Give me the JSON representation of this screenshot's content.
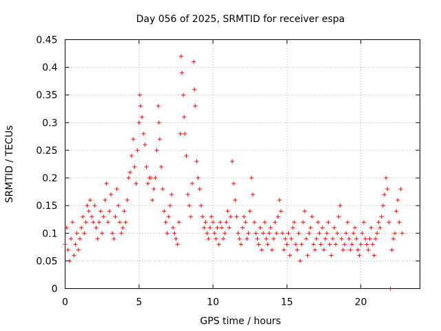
{
  "chart_data": {
    "type": "scatter",
    "title": "Day 056 of 2025, SRMTID for receiver espa",
    "xlabel": "GPS time / hours",
    "ylabel": "SRMTID / TECUs",
    "xlim": [
      0,
      24
    ],
    "ylim": [
      0,
      0.45
    ],
    "xticks": [
      0,
      5,
      10,
      15,
      20
    ],
    "xtick_labels": [
      "0",
      "5",
      "10",
      "15",
      "20"
    ],
    "yticks": [
      0,
      0.05,
      0.1,
      0.15,
      0.2,
      0.25,
      0.3,
      0.35,
      0.4,
      0.45
    ],
    "ytick_labels": [
      "0",
      "0.05",
      "0.1",
      "0.15",
      "0.2",
      "0.25",
      "0.3",
      "0.35",
      "0.4",
      "0.45"
    ],
    "grid": true,
    "marker": "+",
    "series": [
      {
        "name": "SRMTID",
        "color": "#ff0000",
        "x": [
          0.0,
          0.1,
          0.2,
          0.3,
          0.4,
          0.5,
          0.6,
          0.7,
          0.8,
          0.9,
          1.0,
          1.1,
          1.2,
          1.3,
          1.4,
          1.5,
          1.6,
          1.7,
          1.8,
          1.9,
          2.0,
          2.1,
          2.2,
          2.3,
          2.4,
          2.5,
          2.6,
          2.7,
          2.8,
          2.9,
          3.0,
          3.1,
          3.2,
          3.3,
          3.4,
          3.5,
          3.6,
          3.7,
          3.8,
          3.9,
          4.0,
          4.1,
          4.2,
          4.3,
          4.4,
          4.5,
          4.6,
          4.7,
          4.8,
          4.9,
          5.0,
          5.05,
          5.1,
          5.2,
          5.3,
          5.4,
          5.5,
          5.6,
          5.7,
          5.8,
          5.9,
          6.0,
          6.1,
          6.2,
          6.3,
          6.35,
          6.4,
          6.5,
          6.6,
          6.7,
          6.8,
          6.9,
          7.0,
          7.1,
          7.2,
          7.3,
          7.4,
          7.5,
          7.6,
          7.7,
          7.8,
          7.85,
          7.9,
          8.0,
          8.05,
          8.1,
          8.2,
          8.3,
          8.4,
          8.5,
          8.6,
          8.7,
          8.75,
          8.8,
          8.9,
          9.0,
          9.1,
          9.2,
          9.3,
          9.4,
          9.5,
          9.6,
          9.7,
          9.8,
          9.9,
          10.0,
          10.1,
          10.2,
          10.3,
          10.4,
          10.5,
          10.6,
          10.7,
          10.8,
          10.9,
          11.0,
          11.1,
          11.2,
          11.3,
          11.4,
          11.5,
          11.6,
          11.7,
          11.8,
          11.9,
          12.0,
          12.1,
          12.2,
          12.3,
          12.4,
          12.5,
          12.6,
          12.7,
          12.8,
          12.9,
          13.0,
          13.1,
          13.2,
          13.3,
          13.4,
          13.5,
          13.6,
          13.7,
          13.8,
          13.9,
          14.0,
          14.1,
          14.2,
          14.3,
          14.4,
          14.5,
          14.6,
          14.7,
          14.8,
          14.9,
          15.0,
          15.1,
          15.2,
          15.3,
          15.4,
          15.5,
          15.6,
          15.7,
          15.8,
          15.9,
          16.0,
          16.1,
          16.2,
          16.3,
          16.4,
          16.5,
          16.6,
          16.7,
          16.8,
          16.9,
          17.0,
          17.1,
          17.2,
          17.3,
          17.4,
          17.5,
          17.6,
          17.7,
          17.8,
          17.9,
          18.0,
          18.1,
          18.2,
          18.3,
          18.4,
          18.5,
          18.6,
          18.7,
          18.8,
          18.9,
          19.0,
          19.1,
          19.2,
          19.3,
          19.4,
          19.5,
          19.6,
          19.7,
          19.8,
          19.9,
          20.0,
          20.1,
          20.2,
          20.3,
          20.4,
          20.5,
          20.6,
          20.7,
          20.8,
          20.9,
          21.0,
          21.1,
          21.2,
          21.3,
          21.4,
          21.5,
          21.6,
          21.7,
          21.8,
          21.9,
          22.0,
          22.1,
          22.2,
          22.3,
          22.4,
          22.5,
          22.6,
          22.7,
          22.8
        ],
        "y": [
          0.08,
          0.11,
          0.07,
          0.05,
          0.09,
          0.12,
          0.06,
          0.08,
          0.1,
          0.07,
          0.09,
          0.11,
          0.13,
          0.1,
          0.12,
          0.15,
          0.14,
          0.16,
          0.13,
          0.12,
          0.15,
          0.11,
          0.09,
          0.12,
          0.14,
          0.1,
          0.13,
          0.16,
          0.19,
          0.12,
          0.14,
          0.17,
          0.1,
          0.09,
          0.13,
          0.18,
          0.15,
          0.12,
          0.1,
          0.11,
          0.14,
          0.12,
          0.16,
          0.2,
          0.21,
          0.24,
          0.27,
          0.22,
          0.19,
          0.25,
          0.3,
          0.35,
          0.33,
          0.31,
          0.28,
          0.26,
          0.22,
          0.19,
          0.2,
          0.2,
          0.16,
          0.18,
          0.2,
          0.25,
          0.33,
          0.3,
          0.27,
          0.22,
          0.18,
          0.14,
          0.12,
          0.1,
          0.13,
          0.15,
          0.17,
          0.11,
          0.1,
          0.09,
          0.08,
          0.12,
          0.28,
          0.42,
          0.39,
          0.35,
          0.31,
          0.28,
          0.24,
          0.17,
          0.15,
          0.13,
          0.19,
          0.41,
          0.36,
          0.33,
          0.23,
          0.2,
          0.18,
          0.15,
          0.13,
          0.11,
          0.12,
          0.1,
          0.09,
          0.11,
          0.13,
          0.12,
          0.1,
          0.09,
          0.11,
          0.08,
          0.12,
          0.11,
          0.09,
          0.1,
          0.12,
          0.14,
          0.11,
          0.13,
          0.23,
          0.19,
          0.16,
          0.13,
          0.1,
          0.09,
          0.08,
          0.11,
          0.13,
          0.12,
          0.09,
          0.1,
          0.14,
          0.2,
          0.17,
          0.12,
          0.1,
          0.09,
          0.08,
          0.11,
          0.07,
          0.1,
          0.12,
          0.09,
          0.08,
          0.1,
          0.11,
          0.07,
          0.09,
          0.12,
          0.1,
          0.13,
          0.16,
          0.14,
          0.1,
          0.07,
          0.09,
          0.08,
          0.1,
          0.06,
          0.09,
          0.11,
          0.12,
          0.08,
          0.07,
          0.1,
          0.05,
          0.08,
          0.12,
          0.14,
          0.09,
          0.06,
          0.1,
          0.11,
          0.13,
          0.08,
          0.07,
          0.09,
          0.12,
          0.1,
          0.08,
          0.11,
          0.07,
          0.09,
          0.1,
          0.12,
          0.08,
          0.06,
          0.09,
          0.11,
          0.08,
          0.1,
          0.13,
          0.15,
          0.09,
          0.07,
          0.08,
          0.1,
          0.12,
          0.09,
          0.07,
          0.08,
          0.1,
          0.11,
          0.09,
          0.07,
          0.06,
          0.08,
          0.1,
          0.12,
          0.09,
          0.08,
          0.07,
          0.09,
          0.11,
          0.08,
          0.06,
          0.09,
          0.1,
          0.12,
          0.11,
          0.13,
          0.15,
          0.17,
          0.2,
          0.18,
          0.12,
          0.0,
          0.07,
          0.09,
          0.1,
          0.14,
          0.16,
          0.12,
          0.18,
          0.1
        ]
      }
    ]
  }
}
